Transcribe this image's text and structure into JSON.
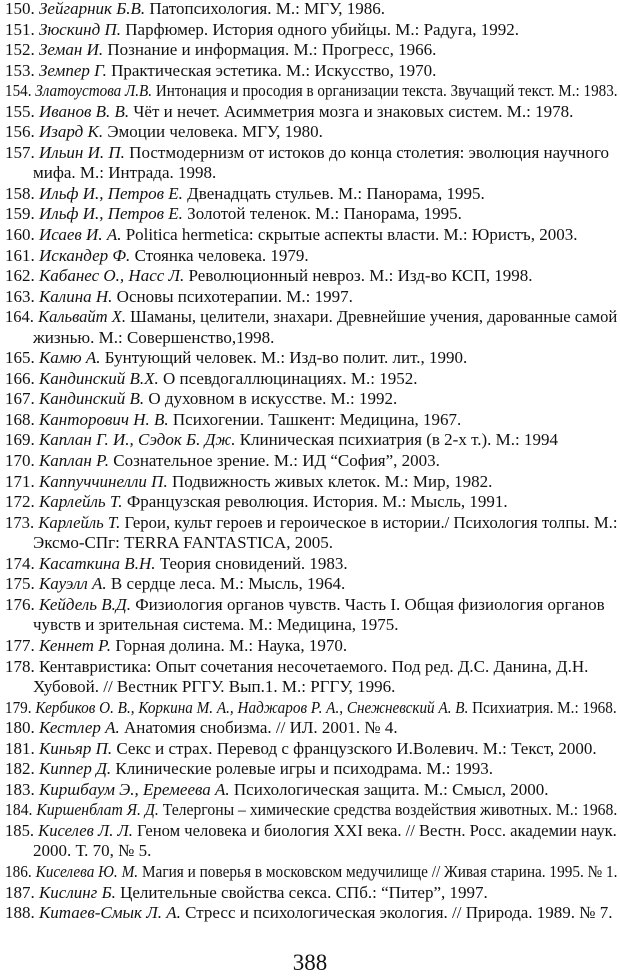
{
  "entries": [
    {
      "num": "150.",
      "author": "Зейгарник Б.В.",
      "text": " Патопсихология. М.: МГУ, 1986."
    },
    {
      "num": "151.",
      "author": "Зюскинд П.",
      "text": " Парфюмер. История одного убийцы. М.: Радуга, 1992."
    },
    {
      "num": "152.",
      "author": "Земан И.",
      "text": " Познание и информация. М.: Прогресс, 1966."
    },
    {
      "num": "153.",
      "author": "Земпер Г.",
      "text": " Практическая эстетика. М.: Искусство, 1970."
    },
    {
      "num": "154.",
      "author": "Златоустова Л.В.",
      "text": " Интонация и просодия в организации текста. Звучащий текст.  М.: 1983."
    },
    {
      "num": "155.",
      "author": "Иванов В. В.",
      "text": " Чёт и нечет. Асимметрия мозга и знаковых систем. М.: 1978."
    },
    {
      "num": "156.",
      "author": "Изард К.",
      "text": " Эмоции человека. МГУ, 1980."
    },
    {
      "num": "157.",
      "author": "Ильин И. П.",
      "text": " Постмодернизм от истоков до конца столетия: эволюция научного",
      "cont": "мифа. М.: Интрада. 1998."
    },
    {
      "num": "158.",
      "author": "Ильф И., Петров Е.",
      "text": " Двенадцать стульев.  М.: Панорама, 1995."
    },
    {
      "num": "159.",
      "author": "Ильф И., Петров Е.",
      "text": " Золотой теленок.  М.: Панорама, 1995."
    },
    {
      "num": "160.",
      "author": "Исаев И. А.",
      "text": " Politica hermetica: скрытые аспекты власти. М.: Юристъ, 2003."
    },
    {
      "num": "161.",
      "author": "Искандер Ф.",
      "text": " Стоянка человека. 1979."
    },
    {
      "num": "162.",
      "author": "Кабанес О., Насс Л.",
      "text": " Революционный невроз.  М.: Изд-во КСП, 1998."
    },
    {
      "num": "163.",
      "author": "Калина Н.",
      "text": " Основы психотерапии. М.: 1997."
    },
    {
      "num": "164.",
      "author": "Кальвайт Х.",
      "text": " Шаманы, целители, знахари. Древнейшие учения, дарованные самой",
      "cont": "жизнью.  М.: Совершенство,1998."
    },
    {
      "num": "165.",
      "author": "Камю А.",
      "text": " Бунтующий человек.  М.: Изд-во полит. лит., 1990."
    },
    {
      "num": "166.",
      "author": "Кандинский В.Х.",
      "text": " О псевдогаллюцинациях.  М.: 1952."
    },
    {
      "num": "167.",
      "author": "Кандинский В.",
      "text": " О духовном в искусстве. М.: 1992."
    },
    {
      "num": "168.",
      "author": "Канторович Н. В.",
      "text": " Психогении. Ташкент: Медицина, 1967."
    },
    {
      "num": "169.",
      "author": "Каплан Г. И., Сэдок Б. Дж.",
      "text": " Клиническая психиатрия (в 2-х т.). М.: 1994"
    },
    {
      "num": "170.",
      "author": "Каплан Р.",
      "text": " Сознательное зрение. М.: ИД “София”, 2003."
    },
    {
      "num": "171.",
      "author": "Каппуччинелли П.",
      "text": " Подвижность живых клеток. М.: Мир, 1982."
    },
    {
      "num": "172.",
      "author": "Карлейль Т.",
      "text": " Французская революция. История. М.: Мысль, 1991."
    },
    {
      "num": "173.",
      "author": "Карлейль Т.",
      "text": " Герои, культ героев и героическое в истории./ Психология толпы.  М.:",
      "cont": " Эксмо-СПг: TERRA FANTASTICA, 2005."
    },
    {
      "num": "174.",
      "author": "Касаткина В.Н.",
      "text": " Теория сновидений. 1983."
    },
    {
      "num": "175.",
      "author": "Кауэлл А.",
      "text": " В сердце леса. М.: Мысль, 1964."
    },
    {
      "num": "176.",
      "author": "Кейдель В.Д.",
      "text": " Физиология органов чувств. Часть I. Общая физиология органов",
      "cont": "чувств и зрительная система. М.: Медицина, 1975."
    },
    {
      "num": "177.",
      "author": "Кеннет Р.",
      "text": " Горная долина. М.: Наука, 1970."
    },
    {
      "num": "178.",
      "author": "",
      "text": " Кентавристика: Опыт сочетания несочетаемого. Под ред. Д.С. Данина, Д.Н.",
      "cont": "Хубовой. //  Вестник РГГУ. Вып.1.  М.: РГГУ, 1996."
    },
    {
      "num": "179.",
      "author": "Кербиков О. В., Коркина М. А., Наджаров Р. А., Снежневский А. В.",
      "text": " Психиатрия.  М.: 1968."
    },
    {
      "num": "180.",
      "author": "Кестлер А.",
      "text": " Анатомия снобизма. //  ИЛ. 2001. № 4."
    },
    {
      "num": "181.",
      "author": "Киньяр П.",
      "text": " Секс и страх. Перевод с французского И.Волевич.  М.: Текст, 2000."
    },
    {
      "num": "182.",
      "author": "Киппер Д.",
      "text": "  Клинические ролевые игры и психодрама. М.:  1993."
    },
    {
      "num": "183.",
      "author": "Киршбаум Э., Еремеева А.",
      "text": " Психологическая защита. М.: Смысл, 2000."
    },
    {
      "num": "184.",
      "author": "Киршенблат Я. Д.",
      "text": " Телергоны – химические средства воздействия животных. М.: 1968."
    },
    {
      "num": "185.",
      "author": "Киселев Л. Л.",
      "text": " Геном человека и биология XXI века. // Вестн. Росс. академии наук.",
      "cont": "2000. Т. 70, № 5."
    },
    {
      "num": "186.",
      "author": "Киселева Ю. М.",
      "text": "  Магия и поверья в московском медучилище // Живая старина. 1995. № 1."
    },
    {
      "num": "187.",
      "author": "Кислинг Б.",
      "text": " Целительные  свойства секса. СПб.: “Питер”, 1997."
    },
    {
      "num": "188.",
      "author": "Китаев-Смык  Л. А.",
      "text": " Стресс и психологическая экология. // Природа. 1989. № 7."
    }
  ],
  "page_number": "388"
}
